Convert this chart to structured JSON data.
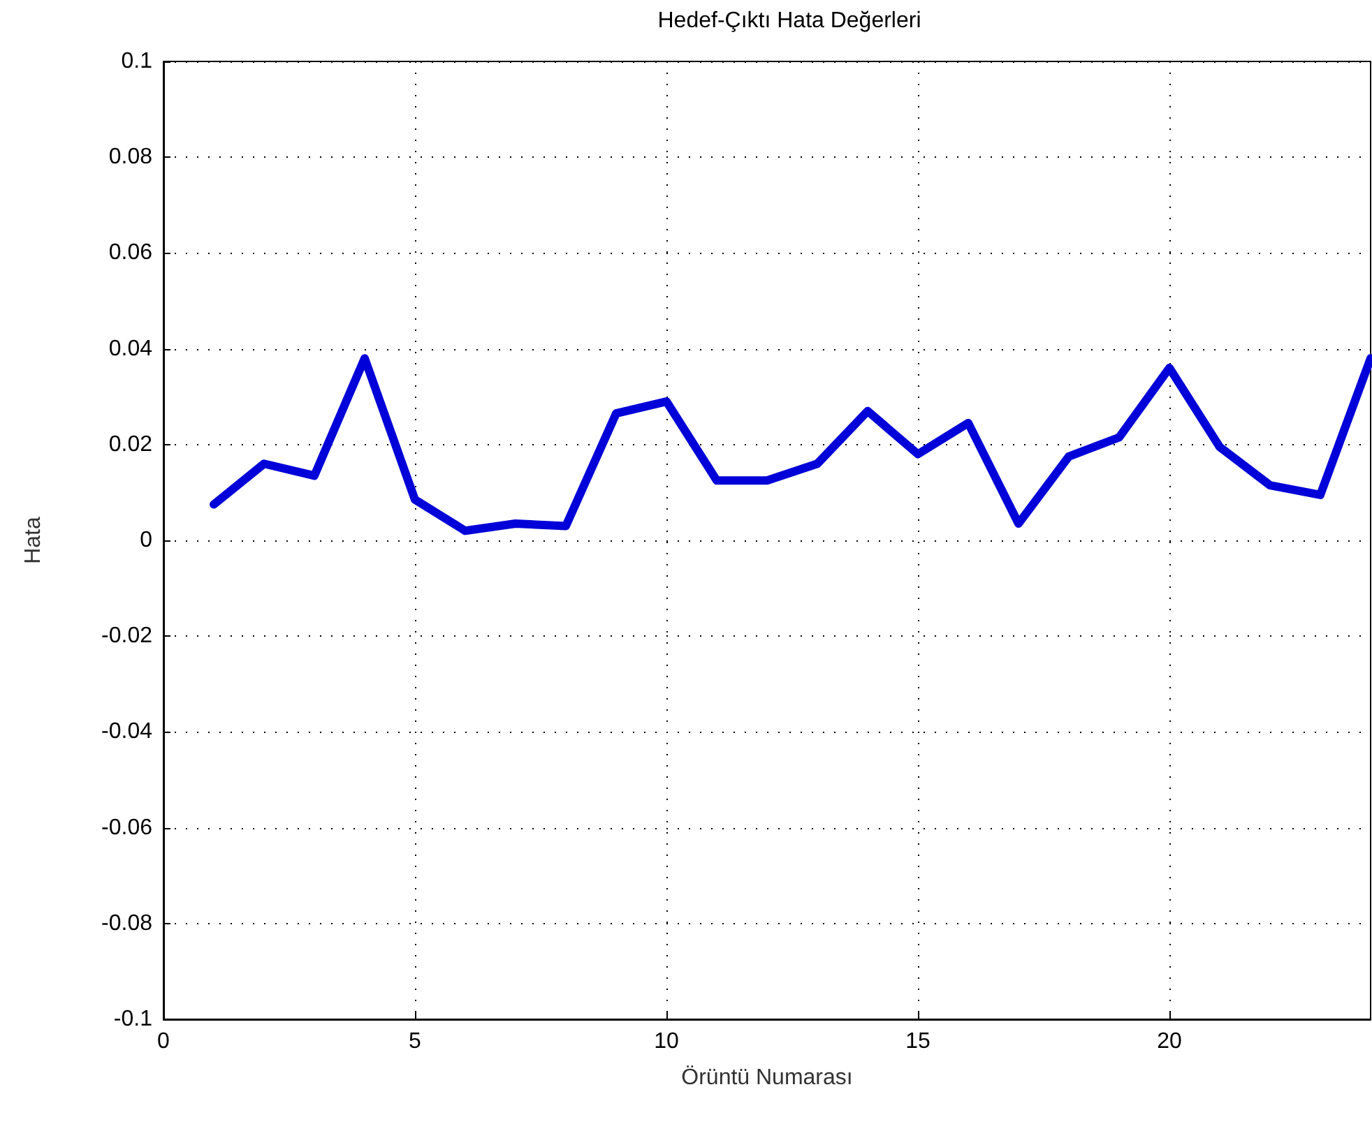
{
  "chart_data": {
    "type": "line",
    "title": "Hedef-Çıktı Hata Değerleri",
    "xlabel": "Örüntü Numarası",
    "ylabel": "Hata",
    "x": [
      1,
      2,
      3,
      4,
      5,
      6,
      7,
      8,
      9,
      10,
      11,
      12,
      13,
      14,
      15,
      16,
      17,
      18,
      19,
      20,
      21,
      22,
      23,
      24
    ],
    "series": [
      {
        "color": "#0000d8",
        "values": [
          0.0075,
          0.016,
          0.0135,
          0.038,
          0.0085,
          0.002,
          0.0035,
          0.003,
          0.0265,
          0.029,
          0.0125,
          0.0125,
          0.016,
          0.027,
          0.018,
          0.0245,
          0.0035,
          0.0175,
          0.0215,
          0.036,
          0.0195,
          0.0115,
          0.0095,
          0.038
        ]
      }
    ],
    "xlim": [
      0,
      24
    ],
    "xticks": [
      0,
      5,
      10,
      15,
      20
    ],
    "ylim": [
      -0.1,
      0.1
    ],
    "yticks": [
      -0.1,
      -0.08,
      -0.06,
      -0.04,
      -0.02,
      0,
      0.02,
      0.04,
      0.06,
      0.08,
      0.1
    ],
    "grid": true,
    "marker": "none",
    "line_style": "solid"
  }
}
